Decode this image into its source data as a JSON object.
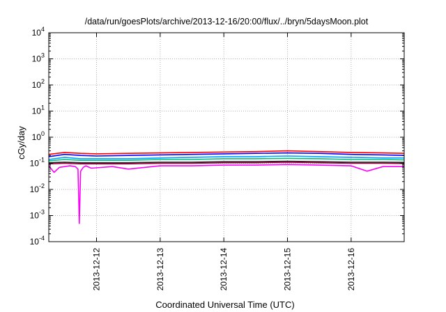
{
  "chart_data": {
    "type": "line",
    "title": "/data/run/goesPlots/archive/2013-12-16/20:00/flux/../bryn/5daysMoon.plot",
    "xlabel": "Coordinated Universal Time (UTC)",
    "ylabel": "cGy/day",
    "x_scale": "time",
    "y_scale": "log",
    "xlim": [
      "2013-12-11 06:00",
      "2013-12-16 20:00"
    ],
    "ylim": [
      0.0001,
      10000
    ],
    "grid": true,
    "legend": "none",
    "x_ticks": [
      {
        "value": "2013-12-12",
        "label": "2013-12-12"
      },
      {
        "value": "2013-12-13",
        "label": "2013-12-13"
      },
      {
        "value": "2013-12-14",
        "label": "2013-12-14"
      },
      {
        "value": "2013-12-15",
        "label": "2013-12-15"
      },
      {
        "value": "2013-12-16",
        "label": "2013-12-16"
      }
    ],
    "y_ticks": [
      {
        "value": 0.0001,
        "base": "10",
        "exp": "-4"
      },
      {
        "value": 0.001,
        "base": "10",
        "exp": "-3"
      },
      {
        "value": 0.01,
        "base": "10",
        "exp": "-2"
      },
      {
        "value": 0.1,
        "base": "10",
        "exp": "-1"
      },
      {
        "value": 1,
        "base": "10",
        "exp": "0"
      },
      {
        "value": 10,
        "base": "10",
        "exp": "1"
      },
      {
        "value": 100,
        "base": "10",
        "exp": "2"
      },
      {
        "value": 1000,
        "base": "10",
        "exp": "3"
      },
      {
        "value": 10000,
        "base": "10",
        "exp": "4"
      }
    ],
    "series": [
      {
        "color": "#ff0000",
        "x": [
          "2013-12-11 06:00",
          "2013-12-11 12:00",
          "2013-12-11 18:00",
          "2013-12-12 00:00",
          "2013-12-12 12:00",
          "2013-12-13 00:00",
          "2013-12-13 12:00",
          "2013-12-14 00:00",
          "2013-12-14 12:00",
          "2013-12-15 00:00",
          "2013-12-15 12:00",
          "2013-12-16 00:00",
          "2013-12-16 12:00",
          "2013-12-16 20:00"
        ],
        "y": [
          0.22,
          0.26,
          0.24,
          0.23,
          0.24,
          0.25,
          0.26,
          0.27,
          0.28,
          0.3,
          0.28,
          0.26,
          0.25,
          0.24
        ]
      },
      {
        "color": "#0000ff",
        "x": [
          "2013-12-11 06:00",
          "2013-12-11 12:00",
          "2013-12-11 18:00",
          "2013-12-12 00:00",
          "2013-12-12 12:00",
          "2013-12-13 00:00",
          "2013-12-13 12:00",
          "2013-12-14 00:00",
          "2013-12-14 12:00",
          "2013-12-15 00:00",
          "2013-12-15 12:00",
          "2013-12-16 00:00",
          "2013-12-16 12:00",
          "2013-12-16 20:00"
        ],
        "y": [
          0.18,
          0.22,
          0.2,
          0.19,
          0.2,
          0.21,
          0.22,
          0.23,
          0.24,
          0.25,
          0.24,
          0.22,
          0.21,
          0.2
        ]
      },
      {
        "color": "#00a0ff",
        "x": [
          "2013-12-11 06:00",
          "2013-12-11 12:00",
          "2013-12-11 18:00",
          "2013-12-12 00:00",
          "2013-12-12 12:00",
          "2013-12-13 00:00",
          "2013-12-13 12:00",
          "2013-12-14 00:00",
          "2013-12-14 12:00",
          "2013-12-15 00:00",
          "2013-12-15 12:00",
          "2013-12-16 00:00",
          "2013-12-16 12:00",
          "2013-12-16 20:00"
        ],
        "y": [
          0.14,
          0.17,
          0.15,
          0.15,
          0.15,
          0.16,
          0.17,
          0.18,
          0.18,
          0.19,
          0.18,
          0.17,
          0.16,
          0.16
        ]
      },
      {
        "color": "#00c080",
        "x": [
          "2013-12-11 06:00",
          "2013-12-11 12:00",
          "2013-12-11 18:00",
          "2013-12-12 00:00",
          "2013-12-12 12:00",
          "2013-12-13 00:00",
          "2013-12-13 12:00",
          "2013-12-14 00:00",
          "2013-12-14 12:00",
          "2013-12-15 00:00",
          "2013-12-15 12:00",
          "2013-12-16 00:00",
          "2013-12-16 12:00",
          "2013-12-16 20:00"
        ],
        "y": [
          0.125,
          0.14,
          0.13,
          0.13,
          0.13,
          0.14,
          0.14,
          0.15,
          0.15,
          0.155,
          0.15,
          0.14,
          0.14,
          0.135
        ]
      },
      {
        "color": "#202020",
        "x": [
          "2013-12-11 06:00",
          "2013-12-11 12:00",
          "2013-12-11 18:00",
          "2013-12-12 00:00",
          "2013-12-12 12:00",
          "2013-12-13 00:00",
          "2013-12-13 12:00",
          "2013-12-14 00:00",
          "2013-12-14 12:00",
          "2013-12-15 00:00",
          "2013-12-15 12:00",
          "2013-12-16 00:00",
          "2013-12-16 12:00",
          "2013-12-16 20:00"
        ],
        "y": [
          0.105,
          0.11,
          0.105,
          0.105,
          0.105,
          0.11,
          0.11,
          0.115,
          0.115,
          0.12,
          0.115,
          0.11,
          0.11,
          0.108
        ]
      },
      {
        "color": "#a00040",
        "x": [
          "2013-12-11 06:00",
          "2013-12-11 12:00",
          "2013-12-11 18:00",
          "2013-12-12 00:00",
          "2013-12-12 12:00",
          "2013-12-13 00:00",
          "2013-12-13 12:00",
          "2013-12-14 00:00",
          "2013-12-14 12:00",
          "2013-12-15 00:00",
          "2013-12-15 12:00",
          "2013-12-16 00:00",
          "2013-12-16 12:00",
          "2013-12-16 20:00"
        ],
        "y": [
          0.095,
          0.1,
          0.095,
          0.095,
          0.095,
          0.1,
          0.1,
          0.105,
          0.105,
          0.11,
          0.105,
          0.1,
          0.1,
          0.098
        ]
      },
      {
        "color": "#ff00ff",
        "x": [
          "2013-12-11 06:00",
          "2013-12-11 08:00",
          "2013-12-11 10:00",
          "2013-12-11 14:00",
          "2013-12-11 16:00",
          "2013-12-11 17:00",
          "2013-12-11 17:30",
          "2013-12-11 18:00",
          "2013-12-11 19:00",
          "2013-12-11 20:00",
          "2013-12-11 22:00",
          "2013-12-12 06:00",
          "2013-12-12 12:00",
          "2013-12-13 00:00",
          "2013-12-13 12:00",
          "2013-12-14 00:00",
          "2013-12-14 12:00",
          "2013-12-15 00:00",
          "2013-12-15 12:00",
          "2013-12-16 00:00",
          "2013-12-16 06:00",
          "2013-12-16 12:00",
          "2013-12-16 20:00"
        ],
        "y": [
          0.08,
          0.045,
          0.07,
          0.08,
          0.075,
          0.06,
          0.0005,
          0.05,
          0.07,
          0.08,
          0.065,
          0.075,
          0.06,
          0.08,
          0.08,
          0.085,
          0.085,
          0.09,
          0.085,
          0.08,
          0.05,
          0.075,
          0.075
        ]
      }
    ]
  }
}
